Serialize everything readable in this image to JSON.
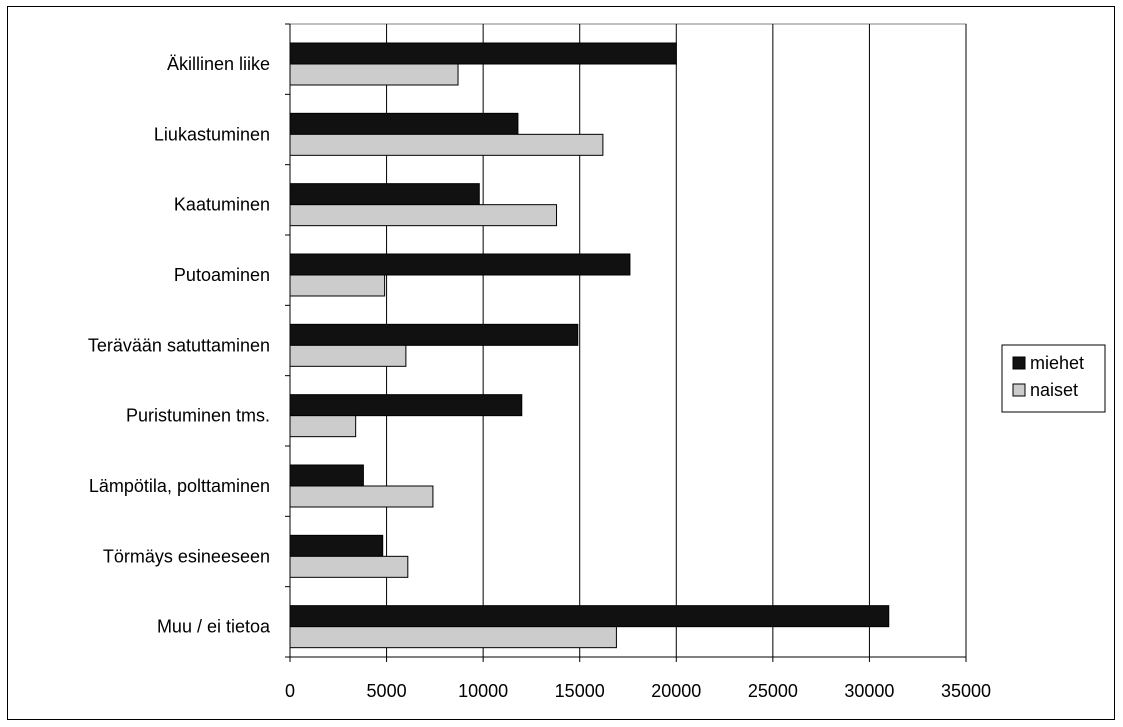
{
  "chart_data": {
    "type": "bar",
    "orientation": "horizontal",
    "categories": [
      "Äkillinen liike",
      "Liukastuminen",
      "Kaatuminen",
      "Putoaminen",
      "Terävään satuttaminen",
      "Puristuminen tms.",
      "Lämpötila, polttaminen",
      "Törmäys esineeseen",
      "Muu / ei tietoa"
    ],
    "series": [
      {
        "name": "miehet",
        "color": "#111111",
        "values": [
          20000,
          11800,
          9800,
          17600,
          14900,
          12000,
          3800,
          4800,
          31000
        ]
      },
      {
        "name": "naiset",
        "color": "#cccccc",
        "values": [
          8700,
          16200,
          13800,
          4900,
          6000,
          3400,
          7400,
          6100,
          16900
        ]
      }
    ],
    "xlim": [
      0,
      35000
    ],
    "xticks": [
      0,
      5000,
      10000,
      15000,
      20000,
      25000,
      30000,
      35000
    ],
    "xtick_labels": [
      "0",
      "5000",
      "10000",
      "15000",
      "20000",
      "25000",
      "30000",
      "35000"
    ],
    "grid": true,
    "legend_position": "right"
  }
}
